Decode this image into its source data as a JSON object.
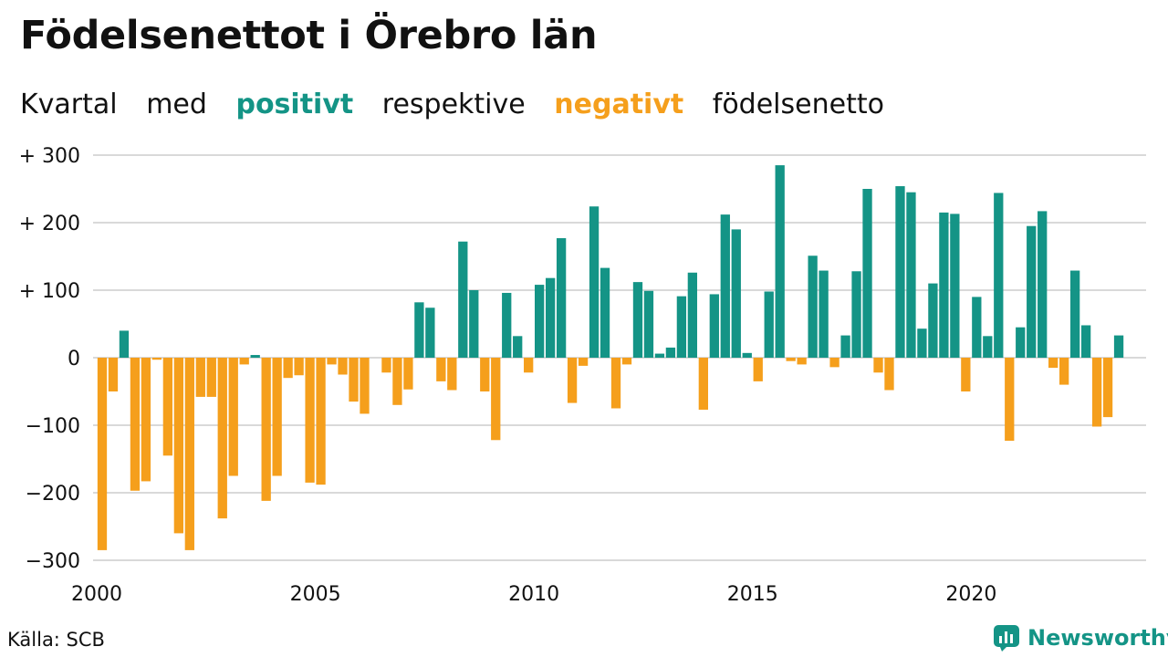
{
  "colors": {
    "positive": "#149486",
    "negative": "#f59f1c",
    "grid": "#d9d9d9",
    "text": "#111111"
  },
  "header": {
    "title": "Födelsenettot i Örebro län"
  },
  "subtitle": {
    "part1": "Kvartal",
    "part2": "med",
    "positive_word": "positivt",
    "part3": "respektive",
    "negative_word": "negativt",
    "part4": "födelsenetto"
  },
  "footer": {
    "source": "Källa: SCB",
    "brand": "Newsworthy",
    "brand_icon": "bar-chart-speech-bubble-icon"
  },
  "chart_data": {
    "type": "bar",
    "title": "Födelsenettot i Örebro län",
    "subtitle": "Kvartal med positivt respektive negativt födelsenetto",
    "xlabel": "",
    "ylabel": "",
    "ylim": [
      -300,
      300
    ],
    "xlim": [
      2000,
      2024
    ],
    "grid": true,
    "yticks": [
      {
        "value": 300,
        "label": "+ 300"
      },
      {
        "value": 200,
        "label": "+ 200"
      },
      {
        "value": 100,
        "label": "+ 100"
      },
      {
        "value": 0,
        "label": "0"
      },
      {
        "value": -100,
        "label": "−100"
      },
      {
        "value": -200,
        "label": "−200"
      },
      {
        "value": -300,
        "label": "−300"
      }
    ],
    "xticks": [
      {
        "value": 2000,
        "label": "2000"
      },
      {
        "value": 2005,
        "label": "2005"
      },
      {
        "value": 2010,
        "label": "2010"
      },
      {
        "value": 2015,
        "label": "2015"
      },
      {
        "value": 2020,
        "label": "2020"
      }
    ],
    "start": "2000 Q1",
    "categories": [
      "2000 Q1",
      "2000 Q2",
      "2000 Q3",
      "2000 Q4",
      "2001 Q1",
      "2001 Q2",
      "2001 Q3",
      "2001 Q4",
      "2002 Q1",
      "2002 Q2",
      "2002 Q3",
      "2002 Q4",
      "2003 Q1",
      "2003 Q2",
      "2003 Q3",
      "2003 Q4",
      "2004 Q1",
      "2004 Q2",
      "2004 Q3",
      "2004 Q4",
      "2005 Q1",
      "2005 Q2",
      "2005 Q3",
      "2005 Q4",
      "2006 Q1",
      "2006 Q2",
      "2006 Q3",
      "2006 Q4",
      "2007 Q1",
      "2007 Q2",
      "2007 Q3",
      "2007 Q4",
      "2008 Q1",
      "2008 Q2",
      "2008 Q3",
      "2008 Q4",
      "2009 Q1",
      "2009 Q2",
      "2009 Q3",
      "2009 Q4",
      "2010 Q1",
      "2010 Q2",
      "2010 Q3",
      "2010 Q4",
      "2011 Q1",
      "2011 Q2",
      "2011 Q3",
      "2011 Q4",
      "2012 Q1",
      "2012 Q2",
      "2012 Q3",
      "2012 Q4",
      "2013 Q1",
      "2013 Q2",
      "2013 Q3",
      "2013 Q4",
      "2014 Q1",
      "2014 Q2",
      "2014 Q3",
      "2014 Q4",
      "2015 Q1",
      "2015 Q2",
      "2015 Q3",
      "2015 Q4",
      "2016 Q1",
      "2016 Q2",
      "2016 Q3",
      "2016 Q4",
      "2017 Q1",
      "2017 Q2",
      "2017 Q3",
      "2017 Q4",
      "2018 Q1",
      "2018 Q2",
      "2018 Q3",
      "2018 Q4",
      "2019 Q1",
      "2019 Q2",
      "2019 Q3",
      "2019 Q4",
      "2020 Q1",
      "2020 Q2",
      "2020 Q3",
      "2020 Q4",
      "2021 Q1",
      "2021 Q2",
      "2021 Q3",
      "2021 Q4",
      "2022 Q1",
      "2022 Q2",
      "2022 Q3",
      "2022 Q4",
      "2023 Q1",
      "2023 Q2",
      "2023 Q3",
      "2023 Q4"
    ],
    "values": [
      -285,
      -50,
      40,
      -197,
      -183,
      -3,
      -145,
      -260,
      -285,
      -58,
      -58,
      -238,
      -175,
      -10,
      4,
      -212,
      -175,
      -30,
      -26,
      -185,
      -188,
      -10,
      -25,
      -65,
      -83,
      0,
      -22,
      -70,
      -47,
      82,
      74,
      -35,
      -48,
      172,
      100,
      -50,
      -122,
      96,
      32,
      -22,
      108,
      118,
      177,
      -67,
      -12,
      224,
      133,
      -75,
      -10,
      112,
      99,
      6,
      15,
      91,
      126,
      -77,
      94,
      212,
      190,
      7,
      -35,
      98,
      285,
      -5,
      -10,
      151,
      129,
      -14,
      33,
      128,
      250,
      -22,
      -48,
      254,
      245,
      43,
      110,
      215,
      213,
      -50,
      90,
      32,
      244,
      -123,
      45,
      195,
      217,
      -15,
      -40,
      129,
      48,
      -102,
      -88,
      33,
      0,
      0
    ]
  }
}
